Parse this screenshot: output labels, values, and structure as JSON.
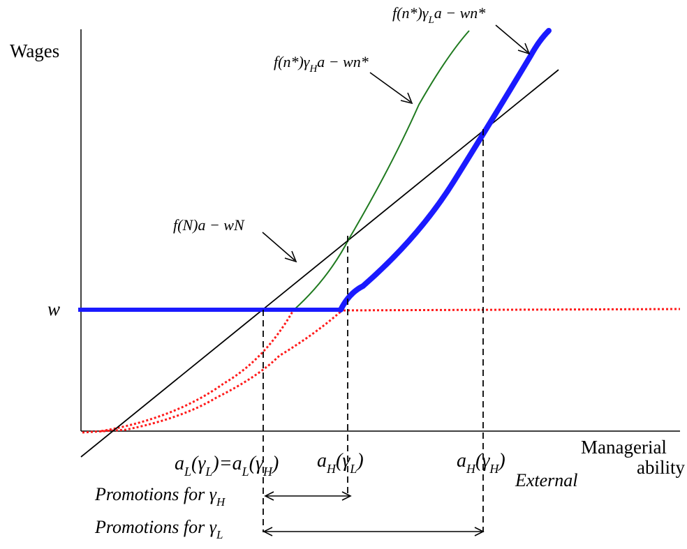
{
  "labels": {
    "y_axis": "Wages",
    "x_axis_line1": "Managerial",
    "x_axis_line2": "ability",
    "w": "w",
    "external": "External"
  },
  "curve_labels": {
    "low_gamma": {
      "prefix": "f(n*)γ",
      "sub": "L",
      "suffix": "a − wn*"
    },
    "high_gamma": {
      "prefix": "f(n*)γ",
      "sub": "H",
      "suffix": "a − wn*"
    },
    "outside": {
      "text": "f(N)a − wN"
    }
  },
  "tick_labels": {
    "a_L": {
      "a": "a",
      "sub": "L",
      "g": "(γ",
      "gsub": "L",
      "close": ")",
      "eq": "=",
      "a2": "a",
      "sub2": "L",
      "g2": "(γ",
      "gsub2": "H",
      "close2": ")"
    },
    "a_H_low": {
      "a": "a",
      "sub": "H",
      "g": "(γ",
      "gsub": "L",
      "close": ")"
    },
    "a_H_high": {
      "a": "a",
      "sub": "H",
      "g": "(γ",
      "gsub": "H",
      "close": ")"
    }
  },
  "ranges": {
    "promo_high": {
      "prefix": "Promotions for γ",
      "sub": "H"
    },
    "promo_low": {
      "prefix": "Promotions for γ",
      "sub": "L"
    }
  },
  "colors": {
    "axis": "#000000",
    "outside_line": "#000000",
    "green_curve": "#1f7a1f",
    "blue_curve": "#1a1aff",
    "red_dotted": "#ff1a1a"
  }
}
